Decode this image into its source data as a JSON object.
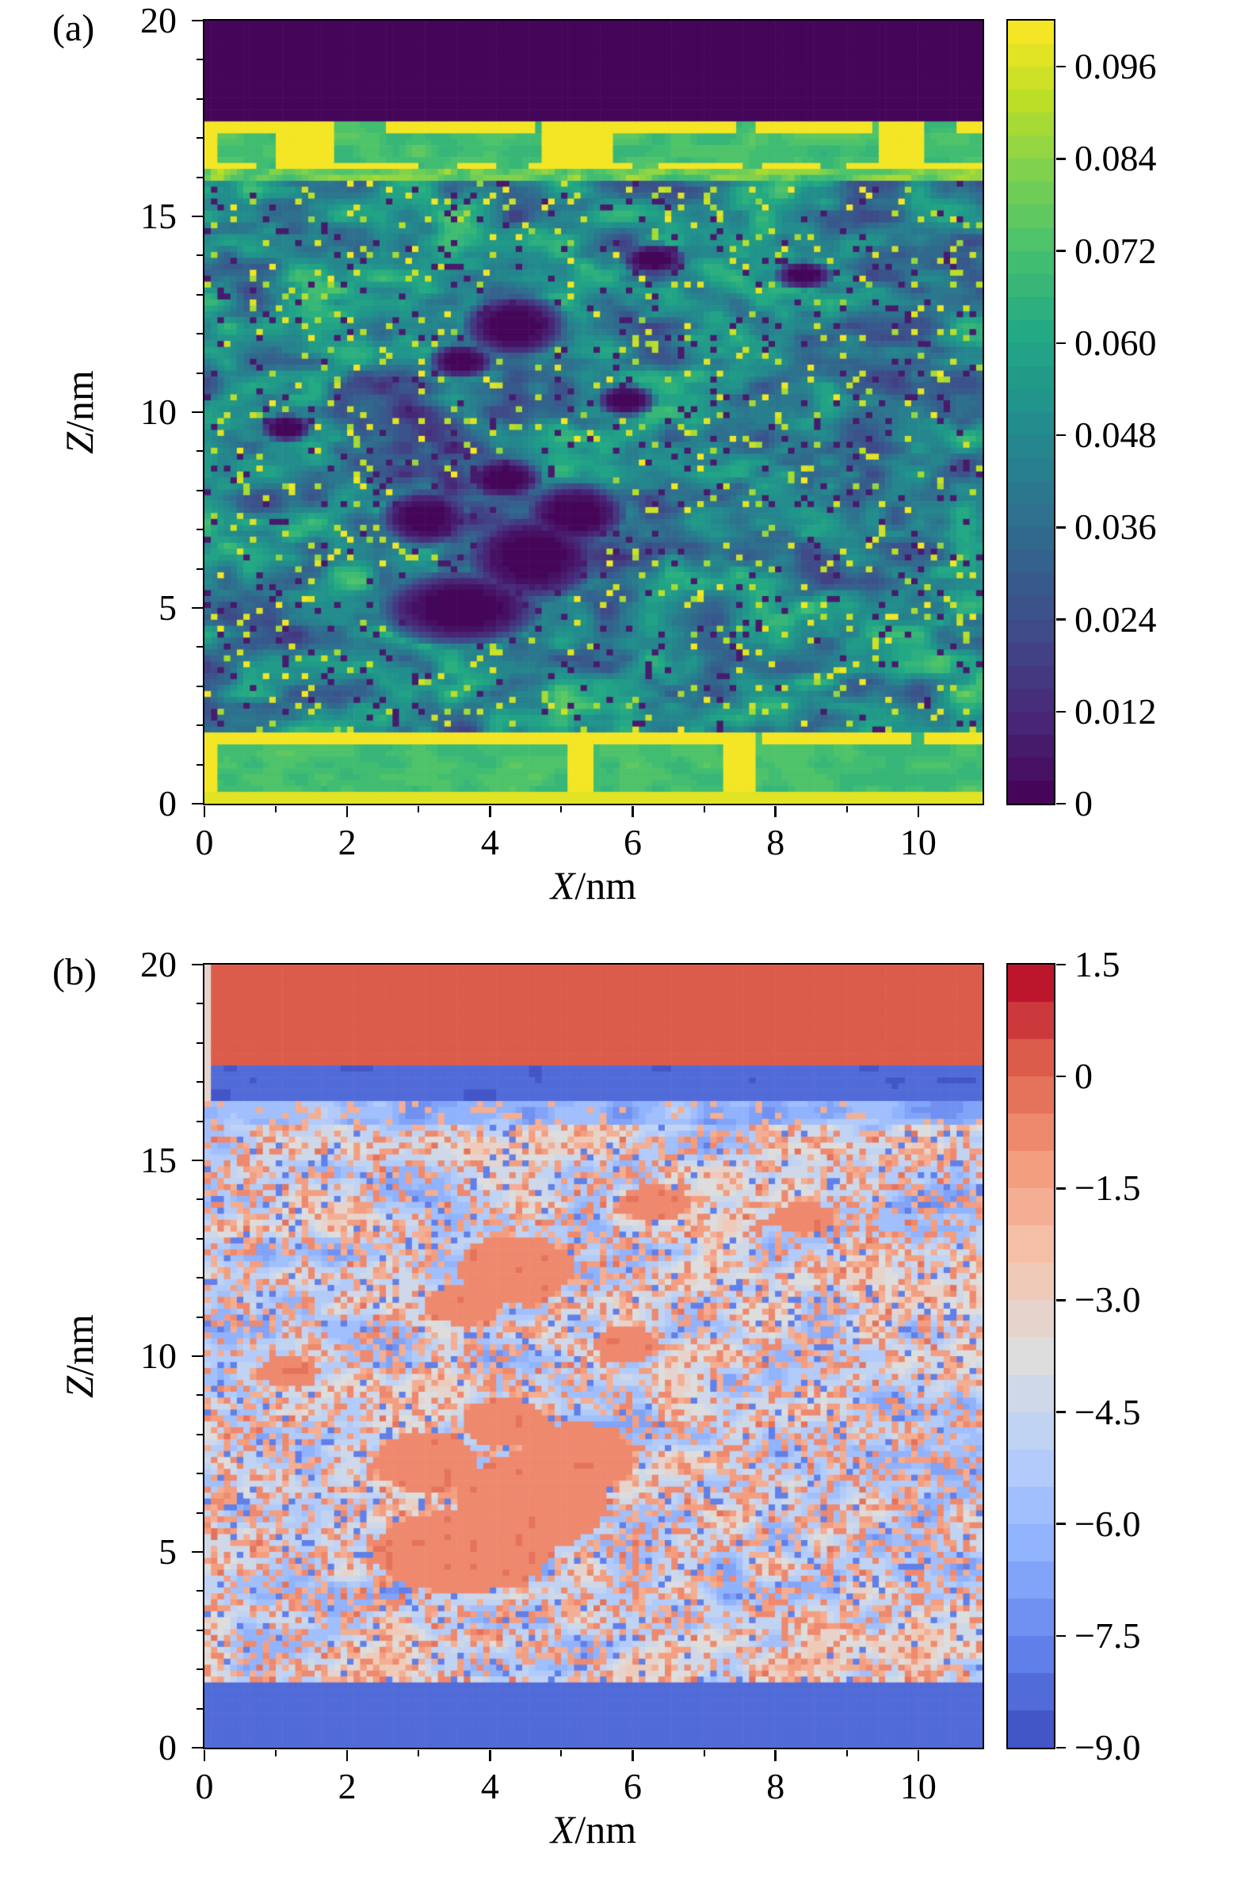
{
  "chart_data": [
    {
      "type": "heatmap",
      "panel_label": "(a)",
      "xlabel": "X/nm",
      "xlabel_var": "X",
      "xlabel_unit": "/nm",
      "ylabel": "Z/nm",
      "ylabel_var": "Z",
      "ylabel_unit": "/nm",
      "xlim": [
        0,
        10.9
      ],
      "ylim": [
        0,
        20
      ],
      "x_ticks": [
        0,
        2,
        4,
        6,
        8,
        10
      ],
      "x_tick_labels": [
        "0",
        "2",
        "4",
        "6",
        "8",
        "10"
      ],
      "y_ticks": [
        0,
        5,
        10,
        15,
        20
      ],
      "y_tick_labels": [
        "0",
        "5",
        "10",
        "15",
        "20"
      ],
      "colormap": "viridis",
      "grid": false,
      "colorbar": {
        "vmin": 0,
        "vmax": 0.102,
        "ticks": [
          0.096,
          0.084,
          0.072,
          0.06,
          0.048,
          0.036,
          0.024,
          0.012,
          0
        ],
        "tick_labels": [
          "0.096",
          "0.084",
          "0.072",
          "0.060",
          "0.048",
          "0.036",
          "0.024",
          "0.012",
          "0"
        ]
      },
      "field": {
        "regions": [
          {
            "name": "vacuum-top",
            "z": [
              17.42,
              20.01
            ],
            "base": 0.002
          },
          {
            "name": "membrane-top",
            "z": [
              16.2,
              17.42
            ],
            "base": 0.071
          },
          {
            "name": "interface-line",
            "z": [
              15.93,
              16.2
            ],
            "base": 0.08
          },
          {
            "name": "water-bulk",
            "z": [
              1.78,
              15.93
            ],
            "base": 0.047
          },
          {
            "name": "membrane-bottom",
            "z": [
              0.25,
              1.78
            ],
            "base": 0.071
          },
          {
            "name": "bottom-edge",
            "z": [
              -0.01,
              0.25
            ],
            "base": 0.096
          }
        ],
        "low_density_blobs": [
          {
            "x": 3.6,
            "z": 5.0,
            "rx": 1.25,
            "rz": 1.05
          },
          {
            "x": 4.6,
            "z": 6.3,
            "rx": 1.05,
            "rz": 1.25
          },
          {
            "x": 5.2,
            "z": 7.4,
            "rx": 0.8,
            "rz": 0.9
          },
          {
            "x": 3.1,
            "z": 7.3,
            "rx": 0.7,
            "rz": 0.8
          },
          {
            "x": 4.2,
            "z": 8.3,
            "rx": 0.6,
            "rz": 0.6
          },
          {
            "x": 4.35,
            "z": 12.2,
            "rx": 0.8,
            "rz": 0.9
          },
          {
            "x": 3.6,
            "z": 11.3,
            "rx": 0.5,
            "rz": 0.5
          },
          {
            "x": 6.3,
            "z": 13.9,
            "rx": 0.5,
            "rz": 0.45
          },
          {
            "x": 8.4,
            "z": 13.5,
            "rx": 0.45,
            "rz": 0.4
          },
          {
            "x": 5.9,
            "z": 10.3,
            "rx": 0.45,
            "rz": 0.45
          },
          {
            "x": 1.15,
            "z": 9.6,
            "rx": 0.4,
            "rz": 0.4
          }
        ],
        "soft_low_blobs": [
          {
            "x": 2.5,
            "z": 10.0,
            "rx": 2.2,
            "rz": 2.4,
            "amp": 0.012
          },
          {
            "x": 4.6,
            "z": 6.0,
            "rx": 2.6,
            "rz": 2.8,
            "amp": 0.014
          }
        ],
        "seed": 7
      }
    },
    {
      "type": "heatmap",
      "panel_label": "(b)",
      "xlabel": "X/nm",
      "xlabel_var": "X",
      "xlabel_unit": "/nm",
      "ylabel": "Z/nm",
      "ylabel_var": "Z",
      "ylabel_unit": "/nm",
      "xlim": [
        0,
        10.9
      ],
      "ylim": [
        0,
        20
      ],
      "x_ticks": [
        0,
        2,
        4,
        6,
        8,
        10
      ],
      "x_tick_labels": [
        "0",
        "2",
        "4",
        "6",
        "8",
        "10"
      ],
      "y_ticks": [
        0,
        5,
        10,
        15,
        20
      ],
      "y_tick_labels": [
        "0",
        "5",
        "10",
        "15",
        "20"
      ],
      "colormap": "coolwarm",
      "grid": false,
      "colorbar": {
        "vmin": -9.0,
        "vmax": 1.5,
        "ticks": [
          1.5,
          0,
          -1.5,
          -3.0,
          -4.5,
          -6.0,
          -7.5,
          -9.0
        ],
        "tick_labels": [
          "1.5",
          "0",
          "−1.5",
          "−3.0",
          "−4.5",
          "−6.0",
          "−7.5",
          "−9.0"
        ]
      },
      "field": {
        "regions": [
          {
            "name": "solid-top",
            "z": [
              17.5,
              20.01
            ],
            "base": 0.15
          },
          {
            "name": "gap-line",
            "z": [
              17.36,
              17.5
            ],
            "base": -3.1
          },
          {
            "name": "blue-band-top",
            "z": [
              16.55,
              17.36
            ],
            "base": -8.3
          },
          {
            "name": "interface-speckle",
            "z": [
              15.9,
              16.55
            ],
            "base": -6.2
          },
          {
            "name": "water-bulk",
            "z": [
              1.72,
              15.9
            ],
            "base": -4.9
          },
          {
            "name": "blue-band-bottom",
            "z": [
              -0.01,
              1.72
            ],
            "base": -8.3
          }
        ],
        "high_value_blobs": [
          {
            "x": 3.6,
            "z": 5.0,
            "rx": 1.25,
            "rz": 1.05
          },
          {
            "x": 4.6,
            "z": 6.3,
            "rx": 1.05,
            "rz": 1.25
          },
          {
            "x": 5.2,
            "z": 7.4,
            "rx": 0.8,
            "rz": 0.9
          },
          {
            "x": 3.1,
            "z": 7.3,
            "rx": 0.7,
            "rz": 0.8
          },
          {
            "x": 4.2,
            "z": 8.3,
            "rx": 0.6,
            "rz": 0.6
          },
          {
            "x": 4.35,
            "z": 12.2,
            "rx": 0.8,
            "rz": 0.9
          },
          {
            "x": 3.6,
            "z": 11.3,
            "rx": 0.5,
            "rz": 0.5
          },
          {
            "x": 6.3,
            "z": 13.9,
            "rx": 0.5,
            "rz": 0.45
          },
          {
            "x": 8.4,
            "z": 13.5,
            "rx": 0.45,
            "rz": 0.4
          },
          {
            "x": 5.9,
            "z": 10.3,
            "rx": 0.45,
            "rz": 0.45
          },
          {
            "x": 1.15,
            "z": 9.6,
            "rx": 0.4,
            "rz": 0.4
          }
        ],
        "seed": 11
      }
    }
  ]
}
